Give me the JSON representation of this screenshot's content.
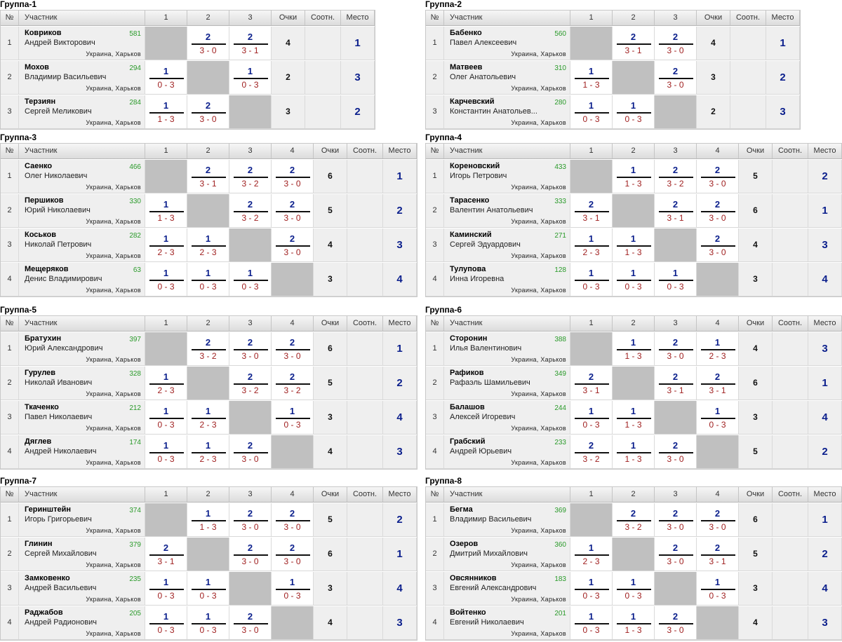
{
  "headers": {
    "no": "№",
    "participant": "Участник",
    "points": "Очки",
    "ratio": "Соотн.",
    "place": "Место"
  },
  "location": "Украина, Харьков",
  "groups": [
    {
      "title": "Группа-1",
      "players": [
        {
          "last": "Ковриков",
          "first": "Андрей Викторович",
          "rating": "581",
          "results": [
            null,
            [
              "2",
              "3 - 0"
            ],
            [
              "2",
              "3 - 1"
            ]
          ],
          "points": "4",
          "place": "1"
        },
        {
          "last": "Мохов",
          "first": "Владимир Васильевич",
          "rating": "294",
          "results": [
            [
              "1",
              "0 - 3"
            ],
            null,
            [
              "1",
              "0 - 3"
            ]
          ],
          "points": "2",
          "place": "3"
        },
        {
          "last": "Терзиян",
          "first": "Сергей Меликович",
          "rating": "284",
          "results": [
            [
              "1",
              "1 - 3"
            ],
            [
              "2",
              "3 - 0"
            ],
            null
          ],
          "points": "3",
          "place": "2"
        }
      ]
    },
    {
      "title": "Группа-2",
      "players": [
        {
          "last": "Бабенко",
          "first": "Павел Алексеевич",
          "rating": "560",
          "results": [
            null,
            [
              "2",
              "3 - 1"
            ],
            [
              "2",
              "3 - 0"
            ]
          ],
          "points": "4",
          "place": "1"
        },
        {
          "last": "Матвеев",
          "first": "Олег Анатольевич",
          "rating": "310",
          "results": [
            [
              "1",
              "1 - 3"
            ],
            null,
            [
              "2",
              "3 - 0"
            ]
          ],
          "points": "3",
          "place": "2"
        },
        {
          "last": "Карчевский",
          "first": "Константин Анатольев...",
          "rating": "280",
          "results": [
            [
              "1",
              "0 - 3"
            ],
            [
              "1",
              "0 - 3"
            ],
            null
          ],
          "points": "2",
          "place": "3"
        }
      ]
    },
    {
      "title": "Группа-3",
      "players": [
        {
          "last": "Саенко",
          "first": "Олег Николаевич",
          "rating": "466",
          "results": [
            null,
            [
              "2",
              "3 - 1"
            ],
            [
              "2",
              "3 - 2"
            ],
            [
              "2",
              "3 - 0"
            ]
          ],
          "points": "6",
          "place": "1"
        },
        {
          "last": "Першиков",
          "first": "Юрий Николаевич",
          "rating": "330",
          "results": [
            [
              "1",
              "1 - 3"
            ],
            null,
            [
              "2",
              "3 - 2"
            ],
            [
              "2",
              "3 - 0"
            ]
          ],
          "points": "5",
          "place": "2"
        },
        {
          "last": "Коськов",
          "first": "Николай Петрович",
          "rating": "282",
          "results": [
            [
              "1",
              "2 - 3"
            ],
            [
              "1",
              "2 - 3"
            ],
            null,
            [
              "2",
              "3 - 0"
            ]
          ],
          "points": "4",
          "place": "3"
        },
        {
          "last": "Мещеряков",
          "first": "Денис Владимирович",
          "rating": "63",
          "results": [
            [
              "1",
              "0 - 3"
            ],
            [
              "1",
              "0 - 3"
            ],
            [
              "1",
              "0 - 3"
            ],
            null
          ],
          "points": "3",
          "place": "4"
        }
      ]
    },
    {
      "title": "Группа-4",
      "players": [
        {
          "last": "Кореновский",
          "first": "Игорь Петрович",
          "rating": "433",
          "results": [
            null,
            [
              "1",
              "1 - 3"
            ],
            [
              "2",
              "3 - 2"
            ],
            [
              "2",
              "3 - 0"
            ]
          ],
          "points": "5",
          "place": "2"
        },
        {
          "last": "Тарасенко",
          "first": "Валентин Анатольевич",
          "rating": "333",
          "results": [
            [
              "2",
              "3 - 1"
            ],
            null,
            [
              "2",
              "3 - 1"
            ],
            [
              "2",
              "3 - 0"
            ]
          ],
          "points": "6",
          "place": "1"
        },
        {
          "last": "Каминский",
          "first": "Сергей Эдуардович",
          "rating": "271",
          "results": [
            [
              "1",
              "2 - 3"
            ],
            [
              "1",
              "1 - 3"
            ],
            null,
            [
              "2",
              "3 - 0"
            ]
          ],
          "points": "4",
          "place": "3"
        },
        {
          "last": "Тулупова",
          "first": "Инна Игоревна",
          "rating": "128",
          "results": [
            [
              "1",
              "0 - 3"
            ],
            [
              "1",
              "0 - 3"
            ],
            [
              "1",
              "0 - 3"
            ],
            null
          ],
          "points": "3",
          "place": "4"
        }
      ]
    },
    {
      "title": "Группа-5",
      "players": [
        {
          "last": "Братухин",
          "first": "Юрий Александрович",
          "rating": "397",
          "results": [
            null,
            [
              "2",
              "3 - 2"
            ],
            [
              "2",
              "3 - 0"
            ],
            [
              "2",
              "3 - 0"
            ]
          ],
          "points": "6",
          "place": "1"
        },
        {
          "last": "Гурулев",
          "first": "Николай Иванович",
          "rating": "328",
          "results": [
            [
              "1",
              "2 - 3"
            ],
            null,
            [
              "2",
              "3 - 2"
            ],
            [
              "2",
              "3 - 2"
            ]
          ],
          "points": "5",
          "place": "2"
        },
        {
          "last": "Ткаченко",
          "first": "Павел Николаевич",
          "rating": "212",
          "results": [
            [
              "1",
              "0 - 3"
            ],
            [
              "1",
              "2 - 3"
            ],
            null,
            [
              "1",
              "0 - 3"
            ]
          ],
          "points": "3",
          "place": "4"
        },
        {
          "last": "Дяглев",
          "first": "Андрей Николаевич",
          "rating": "174",
          "results": [
            [
              "1",
              "0 - 3"
            ],
            [
              "1",
              "2 - 3"
            ],
            [
              "2",
              "3 - 0"
            ],
            null
          ],
          "points": "4",
          "place": "3"
        }
      ]
    },
    {
      "title": "Группа-6",
      "players": [
        {
          "last": "Сторонин",
          "first": "Илья Валентинович",
          "rating": "388",
          "results": [
            null,
            [
              "1",
              "1 - 3"
            ],
            [
              "2",
              "3 - 0"
            ],
            [
              "1",
              "2 - 3"
            ]
          ],
          "points": "4",
          "place": "3"
        },
        {
          "last": "Рафиков",
          "first": "Рафаэль Шамильевич",
          "rating": "349",
          "results": [
            [
              "2",
              "3 - 1"
            ],
            null,
            [
              "2",
              "3 - 1"
            ],
            [
              "2",
              "3 - 1"
            ]
          ],
          "points": "6",
          "place": "1"
        },
        {
          "last": "Балашов",
          "first": "Алексей Игоревич",
          "rating": "244",
          "results": [
            [
              "1",
              "0 - 3"
            ],
            [
              "1",
              "1 - 3"
            ],
            null,
            [
              "1",
              "0 - 3"
            ]
          ],
          "points": "3",
          "place": "4"
        },
        {
          "last": "Грабский",
          "first": "Андрей Юрьевич",
          "rating": "233",
          "results": [
            [
              "2",
              "3 - 2"
            ],
            [
              "1",
              "1 - 3"
            ],
            [
              "2",
              "3 - 0"
            ],
            null
          ],
          "points": "5",
          "place": "2"
        }
      ]
    },
    {
      "title": "Группа-7",
      "players": [
        {
          "last": "Геринштейн",
          "first": "Игорь Григорьевич",
          "rating": "374",
          "results": [
            null,
            [
              "1",
              "1 - 3"
            ],
            [
              "2",
              "3 - 0"
            ],
            [
              "2",
              "3 - 0"
            ]
          ],
          "points": "5",
          "place": "2"
        },
        {
          "last": "Глинин",
          "first": "Сергей Михайлович",
          "rating": "379",
          "results": [
            [
              "2",
              "3 - 1"
            ],
            null,
            [
              "2",
              "3 - 0"
            ],
            [
              "2",
              "3 - 0"
            ]
          ],
          "points": "6",
          "place": "1"
        },
        {
          "last": "Замковенко",
          "first": "Андрей Васильевич",
          "rating": "235",
          "results": [
            [
              "1",
              "0 - 3"
            ],
            [
              "1",
              "0 - 3"
            ],
            null,
            [
              "1",
              "0 - 3"
            ]
          ],
          "points": "3",
          "place": "4"
        },
        {
          "last": "Раджабов",
          "first": "Андрей Радионович",
          "rating": "205",
          "results": [
            [
              "1",
              "0 - 3"
            ],
            [
              "1",
              "0 - 3"
            ],
            [
              "2",
              "3 - 0"
            ],
            null
          ],
          "points": "4",
          "place": "3"
        }
      ]
    },
    {
      "title": "Группа-8",
      "players": [
        {
          "last": "Бегма",
          "first": "Владимир Васильевич",
          "rating": "369",
          "results": [
            null,
            [
              "2",
              "3 - 2"
            ],
            [
              "2",
              "3 - 0"
            ],
            [
              "2",
              "3 - 0"
            ]
          ],
          "points": "6",
          "place": "1"
        },
        {
          "last": "Озеров",
          "first": "Дмитрий Михайлович",
          "rating": "360",
          "results": [
            [
              "1",
              "2 - 3"
            ],
            null,
            [
              "2",
              "3 - 0"
            ],
            [
              "2",
              "3 - 1"
            ]
          ],
          "points": "5",
          "place": "2"
        },
        {
          "last": "Овсянников",
          "first": "Евгений Александрович",
          "rating": "183",
          "results": [
            [
              "1",
              "0 - 3"
            ],
            [
              "1",
              "0 - 3"
            ],
            null,
            [
              "1",
              "0 - 3"
            ]
          ],
          "points": "3",
          "place": "4"
        },
        {
          "last": "Войтенко",
          "first": "Евгений Николаевич",
          "rating": "201",
          "results": [
            [
              "1",
              "0 - 3"
            ],
            [
              "1",
              "1 - 3"
            ],
            [
              "2",
              "3 - 0"
            ],
            null
          ],
          "points": "4",
          "place": "3"
        }
      ]
    }
  ]
}
